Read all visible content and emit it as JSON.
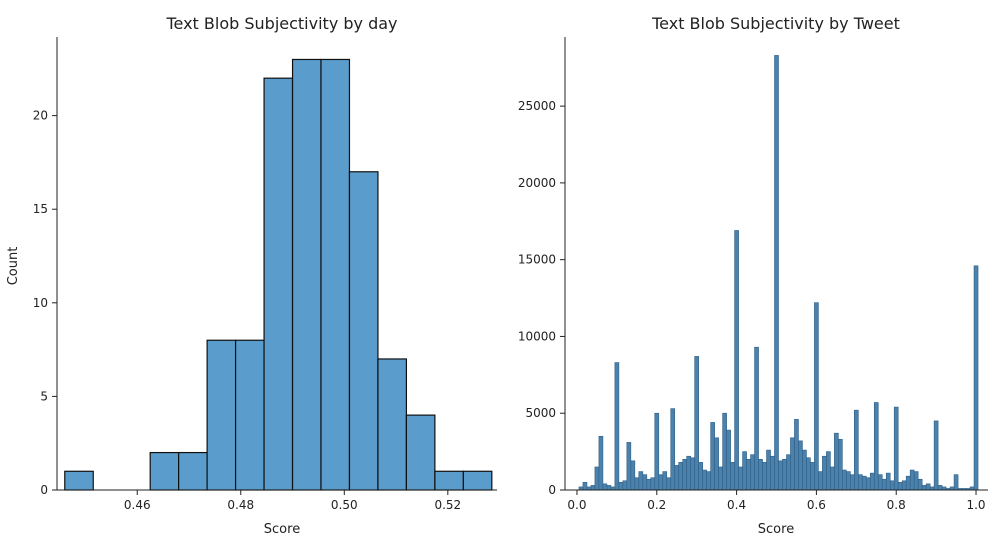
{
  "chart_data": [
    {
      "type": "bar",
      "title": "Text Blob Subjectivity by day",
      "xlabel": "Score",
      "ylabel": "Count",
      "xlim": [
        0.4445,
        0.5295
      ],
      "ylim": [
        0,
        24.2
      ],
      "xticks": [
        0.46,
        0.48,
        0.5,
        0.52
      ],
      "xtick_labels": [
        "0.46",
        "0.48",
        "0.50",
        "0.52"
      ],
      "yticks": [
        0,
        5,
        10,
        15,
        20
      ],
      "ytick_labels": [
        "0",
        "5",
        "10",
        "15",
        "20"
      ],
      "bar_color": "#5a9ccc",
      "edge_color": "#111111",
      "bin_edges": [
        0.446,
        0.4515,
        0.457,
        0.4625,
        0.468,
        0.4735,
        0.479,
        0.4845,
        0.49,
        0.4955,
        0.501,
        0.5065,
        0.512,
        0.5175,
        0.523,
        0.5285
      ],
      "values": [
        1,
        0,
        0,
        2,
        2,
        8,
        8,
        22,
        23,
        23,
        17,
        7,
        4,
        1,
        1
      ]
    },
    {
      "type": "bar",
      "title": "Text Blob Subjectivity by Tweet",
      "xlabel": "Score",
      "ylabel": "",
      "xlim": [
        -0.03,
        1.03
      ],
      "ylim": [
        0,
        29500
      ],
      "xticks": [
        0.0,
        0.2,
        0.4,
        0.6,
        0.8,
        1.0
      ],
      "xtick_labels": [
        "0.0",
        "0.2",
        "0.4",
        "0.6",
        "0.8",
        "1.0"
      ],
      "yticks": [
        0,
        5000,
        10000,
        15000,
        20000,
        25000
      ],
      "ytick_labels": [
        "0",
        "5000",
        "10000",
        "15000",
        "20000",
        "25000"
      ],
      "bar_color": "#4a82ad",
      "edge_color": "#2f5f86",
      "bin_width": 0.01,
      "values": [
        0,
        200,
        500,
        200,
        300,
        1500,
        3500,
        400,
        300,
        200,
        8300,
        500,
        600,
        3100,
        1900,
        800,
        1200,
        1000,
        700,
        800,
        5000,
        1000,
        1200,
        800,
        5300,
        1600,
        1800,
        2000,
        2200,
        2100,
        8700,
        1800,
        1300,
        1200,
        4400,
        3400,
        1500,
        5000,
        3900,
        1800,
        16900,
        1500,
        2500,
        2000,
        2300,
        9300,
        2000,
        1800,
        2600,
        2200,
        28300,
        1900,
        2000,
        2300,
        3400,
        4600,
        3200,
        2600,
        2100,
        1800,
        12200,
        1200,
        2200,
        2500,
        1500,
        3700,
        3300,
        1300,
        1200,
        1000,
        5200,
        1000,
        900,
        800,
        1100,
        5700,
        1000,
        700,
        1100,
        600,
        5400,
        500,
        600,
        900,
        1300,
        1200,
        700,
        300,
        400,
        200,
        4500,
        300,
        200,
        100,
        200,
        1000,
        100,
        100,
        100,
        200,
        14600
      ]
    }
  ]
}
